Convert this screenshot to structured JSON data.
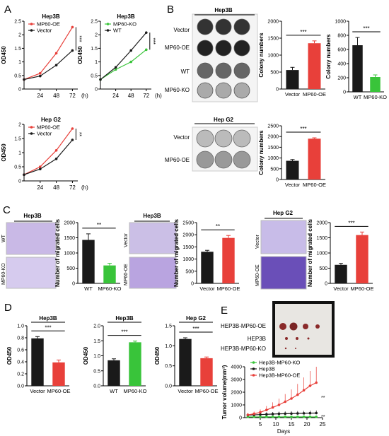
{
  "panels": [
    {
      "letter": "A"
    },
    {
      "letter": "B"
    },
    {
      "letter": "C"
    },
    {
      "letter": "D"
    },
    {
      "letter": "E"
    }
  ],
  "colors": {
    "red": "#e8403a",
    "black": "#1a1a1a",
    "green": "#39c43a",
    "purple": "#7a5cc0",
    "plate": "#888888"
  },
  "b_plates": [
    {
      "title": "Hep3B",
      "row_labels": [
        "Vector",
        "MP60-OE"
      ]
    },
    {
      "title": "",
      "row_labels": [
        "WT",
        "MP60-KO"
      ]
    },
    {
      "title": "Hep G2",
      "row_labels": [
        "Vector",
        "MP60-OE"
      ]
    }
  ],
  "c_images": [
    {
      "title": "Hep3B",
      "row_labels": [
        "WT",
        "MP60-KO"
      ]
    },
    {
      "title": "Hep3B",
      "row_labels": [
        "Vector",
        "MP60-OE"
      ]
    },
    {
      "title": "Hep G2",
      "row_labels": [
        "Vector",
        "MP60-OE"
      ]
    }
  ],
  "e_photo": {
    "row_labels": [
      "HEP3B-MP60-OE",
      "HEP3B",
      "HEP3B-MP60-KO"
    ]
  },
  "chart_data": [
    {
      "id": "A1",
      "type": "line",
      "title": "Hep3B",
      "ylabel": "OD450",
      "xunit": "(h)",
      "x": [
        0,
        24,
        48,
        72
      ],
      "ylim": [
        0,
        2.5
      ],
      "yticks": [
        0,
        0.5,
        1,
        1.5,
        2,
        2.5
      ],
      "sig": "***",
      "series": [
        {
          "name": "MP60-OE",
          "color": "#e8403a",
          "values": [
            0.35,
            0.58,
            1.32,
            2.28
          ]
        },
        {
          "name": "Vector",
          "color": "#1a1a1a",
          "values": [
            0.35,
            0.48,
            0.88,
            1.42
          ]
        }
      ]
    },
    {
      "id": "A2",
      "type": "line",
      "title": "Hep3B",
      "ylabel": "OD450",
      "xunit": "(h)",
      "x": [
        0,
        24,
        48,
        72
      ],
      "ylim": [
        0,
        2.5
      ],
      "yticks": [
        0,
        0.5,
        1,
        1.5,
        2,
        2.5
      ],
      "sig": "***",
      "series": [
        {
          "name": "MP60-KO",
          "color": "#39c43a",
          "values": [
            0.35,
            0.72,
            1.0,
            1.45
          ]
        },
        {
          "name": "WT",
          "color": "#1a1a1a",
          "values": [
            0.35,
            0.8,
            1.42,
            2.08
          ]
        }
      ]
    },
    {
      "id": "A3",
      "type": "line",
      "title": "Hep G2",
      "ylabel": "OD450",
      "xunit": "(h)",
      "x": [
        0,
        24,
        48,
        72
      ],
      "ylim": [
        0,
        2.0
      ],
      "yticks": [
        0,
        0.5,
        1,
        1.5,
        2.0
      ],
      "sig": "**",
      "series": [
        {
          "name": "MP60-OE",
          "color": "#e8403a",
          "values": [
            0.22,
            0.5,
            1.08,
            1.85
          ]
        },
        {
          "name": "Vector",
          "color": "#1a1a1a",
          "values": [
            0.22,
            0.42,
            0.78,
            1.45
          ]
        }
      ]
    },
    {
      "id": "B1",
      "type": "bar",
      "ylabel": "Colony numbers",
      "categories": [
        "Vector",
        "MP60-OE"
      ],
      "values": [
        560,
        1350
      ],
      "errors": [
        80,
        70
      ],
      "colors": [
        "#1a1a1a",
        "#e8403a"
      ],
      "ylim": [
        0,
        2000
      ],
      "yticks": [
        0,
        500,
        1000,
        1500,
        2000
      ],
      "sig": "***"
    },
    {
      "id": "B2",
      "type": "bar",
      "ylabel": "Colony numbers",
      "categories": [
        "WT",
        "MP60-KO"
      ],
      "values": [
        660,
        210
      ],
      "errors": [
        110,
        30
      ],
      "colors": [
        "#1a1a1a",
        "#39c43a"
      ],
      "ylim": [
        0,
        1000
      ],
      "yticks": [
        0,
        200,
        400,
        600,
        800,
        1000
      ],
      "sig": "***"
    },
    {
      "id": "B3",
      "type": "bar",
      "ylabel": "Colony numbers",
      "categories": [
        "Vector",
        "MP60-OE"
      ],
      "values": [
        870,
        1900
      ],
      "errors": [
        60,
        40
      ],
      "colors": [
        "#1a1a1a",
        "#e8403a"
      ],
      "ylim": [
        0,
        2500
      ],
      "yticks": [
        0,
        500,
        1000,
        1500,
        2000,
        2500
      ],
      "sig": "***"
    },
    {
      "id": "C1",
      "type": "bar",
      "ylabel": "Number of  migrated cells",
      "categories": [
        "WT",
        "MP60-KO"
      ],
      "values": [
        1430,
        590
      ],
      "errors": [
        200,
        70
      ],
      "colors": [
        "#1a1a1a",
        "#39c43a"
      ],
      "ylim": [
        0,
        2000
      ],
      "yticks": [
        0,
        500,
        1000,
        1500,
        2000
      ],
      "sig": "**"
    },
    {
      "id": "C2",
      "type": "bar",
      "ylabel": "Number of  migrated cells",
      "categories": [
        "Vector",
        "MP60-OE"
      ],
      "values": [
        1300,
        1870
      ],
      "errors": [
        60,
        100
      ],
      "colors": [
        "#1a1a1a",
        "#e8403a"
      ],
      "ylim": [
        0,
        2500
      ],
      "yticks": [
        0,
        500,
        1000,
        1500,
        2000,
        2500
      ],
      "sig": "**"
    },
    {
      "id": "C3",
      "type": "bar",
      "ylabel": "Number of  migrated cells",
      "categories": [
        "Vector",
        "MP60-OE"
      ],
      "values": [
        610,
        1590
      ],
      "errors": [
        50,
        100
      ],
      "colors": [
        "#1a1a1a",
        "#e8403a"
      ],
      "ylim": [
        0,
        2000
      ],
      "yticks": [
        0,
        500,
        1000,
        1500,
        2000
      ],
      "sig": "***"
    },
    {
      "id": "D1",
      "type": "bar",
      "title": "Hep3B",
      "ylabel": "OD450",
      "categories": [
        "Vector",
        "MP60-OE"
      ],
      "values": [
        0.79,
        0.39
      ],
      "errors": [
        0.03,
        0.04
      ],
      "colors": [
        "#1a1a1a",
        "#e8403a"
      ],
      "ylim": [
        0,
        1.0
      ],
      "yticks": [
        0.0,
        0.2,
        0.4,
        0.6,
        0.8,
        1.0
      ],
      "sig": "***"
    },
    {
      "id": "D2",
      "type": "bar",
      "title": "Hep3B",
      "ylabel": "OD450",
      "categories": [
        "WT",
        "MP60-KO"
      ],
      "values": [
        0.85,
        1.45
      ],
      "errors": [
        0.05,
        0.04
      ],
      "colors": [
        "#1a1a1a",
        "#39c43a"
      ],
      "ylim": [
        0,
        2.0
      ],
      "yticks": [
        0.0,
        0.5,
        1.0,
        1.5,
        2.0
      ],
      "sig": "***"
    },
    {
      "id": "D3",
      "type": "bar",
      "title": "Hep G2",
      "ylabel": "OD450",
      "categories": [
        "Vector",
        "MP60-OE"
      ],
      "values": [
        1.17,
        0.69
      ],
      "errors": [
        0.03,
        0.03
      ],
      "colors": [
        "#1a1a1a",
        "#e8403a"
      ],
      "ylim": [
        0,
        1.5
      ],
      "yticks": [
        0.0,
        0.5,
        1.0,
        1.5
      ],
      "sig": "***"
    },
    {
      "id": "E1",
      "type": "line",
      "ylabel": "Tumor volume(mm³)",
      "xlabel": "Days",
      "x": [
        1,
        3,
        5,
        7,
        9,
        11,
        13,
        15,
        17,
        19,
        21,
        23
      ],
      "xlim": [
        0,
        25
      ],
      "xticks": [
        5,
        10,
        15,
        20,
        25
      ],
      "ylim": [
        0,
        4000
      ],
      "yticks": [
        0,
        1000,
        2000,
        3000,
        4000
      ],
      "sigs": [
        "**",
        "**"
      ],
      "series": [
        {
          "name": "Hep3B-MP60-KO",
          "color": "#39c43a",
          "values": [
            60,
            60,
            60,
            65,
            60,
            60,
            65,
            60,
            60,
            65,
            60,
            60
          ]
        },
        {
          "name": "Hep3B",
          "color": "#1a1a1a",
          "values": [
            200,
            220,
            240,
            260,
            280,
            300,
            310,
            320,
            330,
            340,
            350,
            360
          ]
        },
        {
          "name": "Hep3B-MP60-OE",
          "color": "#e8403a",
          "values": [
            220,
            300,
            420,
            600,
            800,
            1000,
            1250,
            1500,
            1800,
            2150,
            2500,
            2750
          ]
        }
      ]
    }
  ]
}
